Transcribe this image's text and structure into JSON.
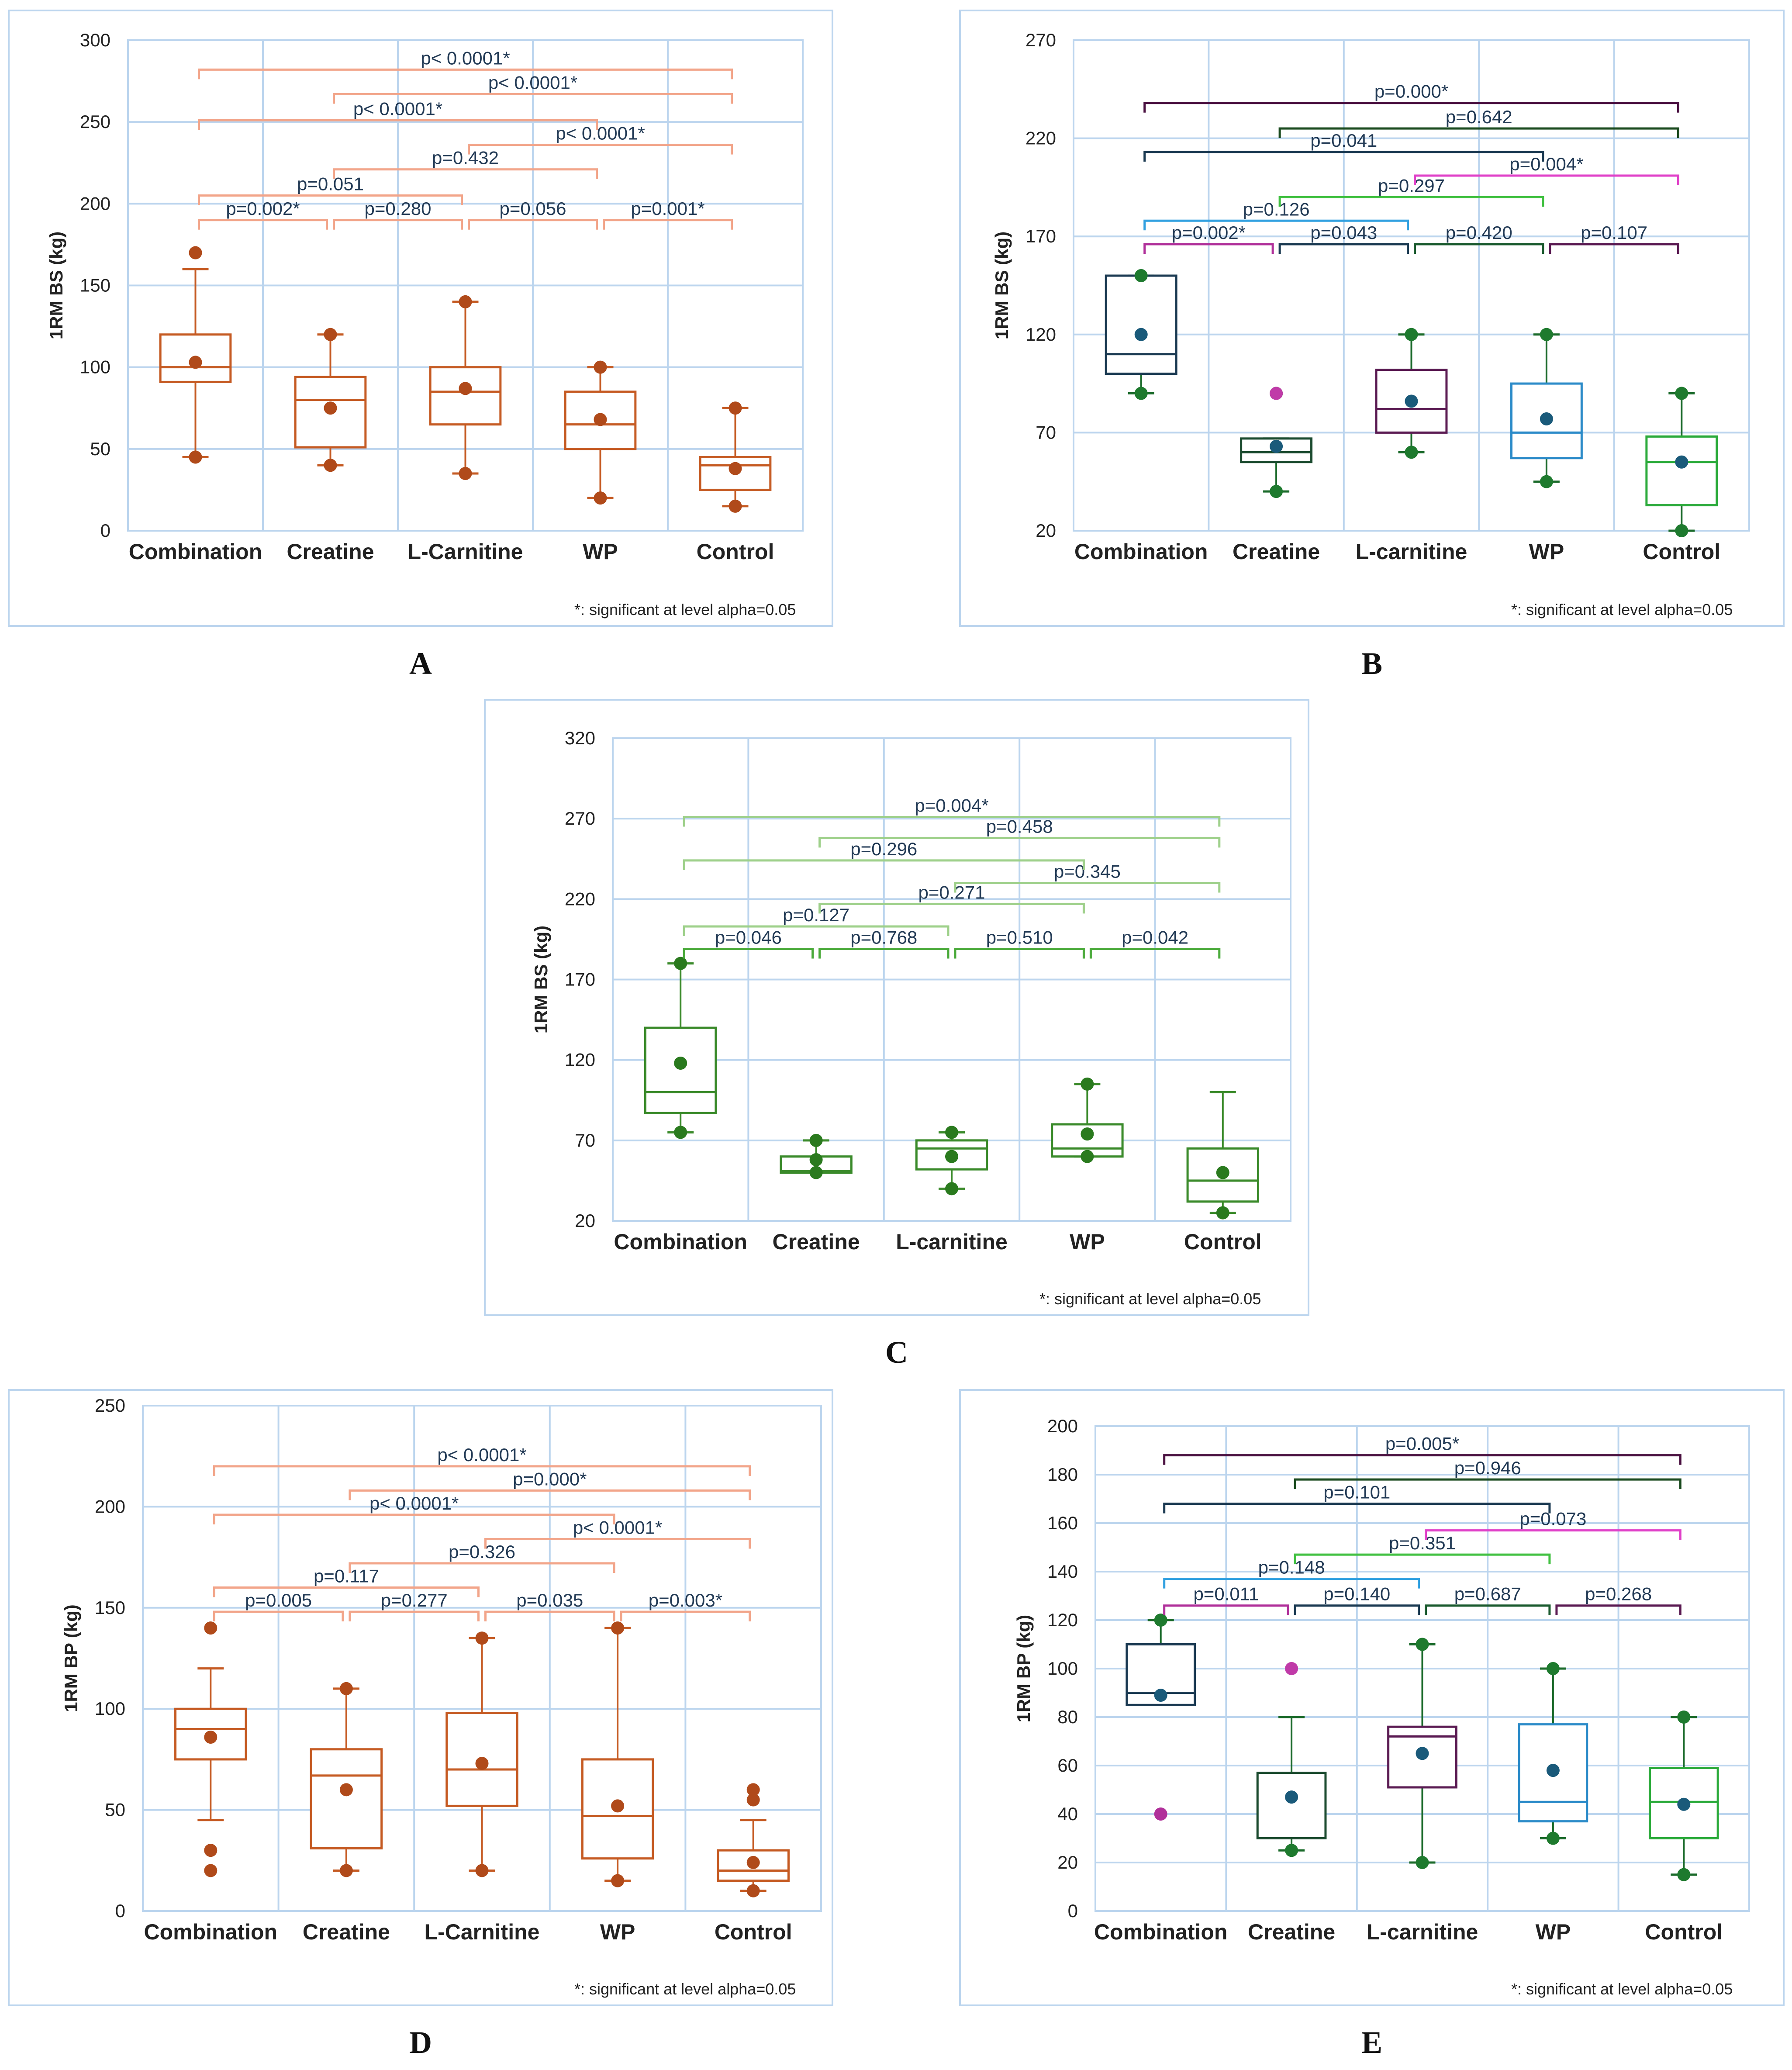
{
  "figure": {
    "footnote": "*: significant at level alpha=0.05"
  },
  "chart_data": [
    {
      "type": "box",
      "panel_label": "A",
      "title": "",
      "xlabel": "",
      "ylabel": "1RM BS (kg)",
      "ylim": [
        0,
        300
      ],
      "yticks": [
        "0",
        "50",
        "100",
        "150",
        "200",
        "250",
        "300"
      ],
      "categories": [
        "Combination",
        "Creatine",
        "L-Carnitine",
        "WP",
        "Control"
      ],
      "grid": true,
      "color": "#c55a22",
      "bracket_color": "#f2a58a",
      "outlier_color": "#b04a1a",
      "mean_color": "#b04a1a",
      "boxes": [
        {
          "min": 45,
          "q1": 91,
          "median": 100,
          "q3": 120,
          "max": 160,
          "mean": 103,
          "outliers": [
            170,
            45
          ]
        },
        {
          "min": 40,
          "q1": 51,
          "median": 80,
          "q3": 94,
          "max": 120,
          "mean": 75,
          "outliers": [
            120,
            40
          ]
        },
        {
          "min": 35,
          "q1": 65,
          "median": 85,
          "q3": 100,
          "max": 140,
          "mean": 87,
          "outliers": [
            140,
            35
          ]
        },
        {
          "min": 20,
          "q1": 50,
          "median": 65,
          "q3": 85,
          "max": 100,
          "mean": 68,
          "outliers": [
            100,
            20
          ]
        },
        {
          "min": 15,
          "q1": 25,
          "median": 40,
          "q3": 45,
          "max": 75,
          "mean": 38,
          "outliers": [
            75,
            15
          ]
        }
      ],
      "comparisons": [
        {
          "from": 0,
          "to": 1,
          "label": "p=0.002*",
          "y": 190
        },
        {
          "from": 1,
          "to": 2,
          "label": "p=0.280",
          "y": 190
        },
        {
          "from": 2,
          "to": 3,
          "label": "p=0.056",
          "y": 190
        },
        {
          "from": 3,
          "to": 4,
          "label": "p=0.001*",
          "y": 190
        },
        {
          "from": 0,
          "to": 2,
          "label": "p=0.051",
          "y": 205
        },
        {
          "from": 1,
          "to": 3,
          "label": "p=0.432",
          "y": 221
        },
        {
          "from": 2,
          "to": 4,
          "label": "p< 0.0001*",
          "y": 236
        },
        {
          "from": 0,
          "to": 3,
          "label": "p< 0.0001*",
          "y": 251
        },
        {
          "from": 1,
          "to": 4,
          "label": "p< 0.0001*",
          "y": 267
        },
        {
          "from": 0,
          "to": 4,
          "label": "p< 0.0001*",
          "y": 282
        }
      ]
    },
    {
      "type": "box",
      "panel_label": "B",
      "title": "",
      "xlabel": "",
      "ylabel": "1RM BS (kg)",
      "ylim": [
        20,
        270
      ],
      "yticks": [
        "20",
        "70",
        "120",
        "170",
        "220",
        "270"
      ],
      "categories": [
        "Combination",
        "Creatine",
        "L-carnitine",
        "WP",
        "Control"
      ],
      "grid": true,
      "box_colors": [
        "#1b3a52",
        "#1a4a2e",
        "#5a1a52",
        "#2a8ac8",
        "#2aaa3a"
      ],
      "whisker_color": "#1a6a2a",
      "outlier_color": "#1e7a2e",
      "mean_color": "#1a5a7a",
      "boxes": [
        {
          "min": 90,
          "q1": 100,
          "median": 110,
          "q3": 150,
          "max": 150,
          "mean": 120,
          "outliers": [
            150,
            90
          ]
        },
        {
          "min": 40,
          "q1": 55,
          "median": 60,
          "q3": 67,
          "max": 67,
          "mean": 63,
          "outliers": [
            90,
            40
          ]
        },
        {
          "min": 60,
          "q1": 70,
          "median": 82,
          "q3": 102,
          "max": 120,
          "mean": 86,
          "outliers": [
            120,
            60
          ]
        },
        {
          "min": 45,
          "q1": 57,
          "median": 70,
          "q3": 95,
          "max": 120,
          "mean": 77,
          "outliers": [
            120,
            45
          ]
        },
        {
          "min": 20,
          "q1": 33,
          "median": 55,
          "q3": 68,
          "max": 90,
          "mean": 55,
          "outliers": [
            90,
            20
          ]
        }
      ],
      "special_outliers": [
        {
          "box": 1,
          "value": 90,
          "color": "#c03aa8"
        }
      ],
      "comparisons": [
        {
          "from": 0,
          "to": 1,
          "label": "p=0.002*",
          "y": 166,
          "color": "#b0309a"
        },
        {
          "from": 1,
          "to": 2,
          "label": "p=0.043",
          "y": 166,
          "color": "#1b3a52"
        },
        {
          "from": 2,
          "to": 3,
          "label": "p=0.420",
          "y": 166,
          "color": "#1a5a2e"
        },
        {
          "from": 3,
          "to": 4,
          "label": "p=0.107",
          "y": 166,
          "color": "#5a1a52"
        },
        {
          "from": 0,
          "to": 2,
          "label": "p=0.126",
          "y": 178,
          "color": "#30a0e0"
        },
        {
          "from": 1,
          "to": 3,
          "label": "p=0.297",
          "y": 190,
          "color": "#40c040"
        },
        {
          "from": 2,
          "to": 4,
          "label": "p=0.004*",
          "y": 201,
          "color": "#e040c8"
        },
        {
          "from": 0,
          "to": 3,
          "label": "p=0.041",
          "y": 213,
          "color": "#1b3a52"
        },
        {
          "from": 1,
          "to": 4,
          "label": "p=0.642",
          "y": 225,
          "color": "#1a4a1e"
        },
        {
          "from": 0,
          "to": 4,
          "label": "p=0.000*",
          "y": 238,
          "color": "#4a1040"
        }
      ]
    },
    {
      "type": "box",
      "panel_label": "C",
      "title": "",
      "xlabel": "",
      "ylabel": "1RM BS (kg)",
      "ylim": [
        20,
        320
      ],
      "yticks": [
        "20",
        "70",
        "120",
        "170",
        "220",
        "270",
        "320"
      ],
      "categories": [
        "Combination",
        "Creatine",
        "L-carnitine",
        "WP",
        "Control"
      ],
      "grid": true,
      "color": "#3a8a2a",
      "bracket_color": "#9ed08a",
      "outlier_color": "#2a7a1e",
      "mean_color": "#2a7a1e",
      "boxes": [
        {
          "min": 75,
          "q1": 87,
          "median": 100,
          "q3": 140,
          "max": 180,
          "mean": 118,
          "outliers": [
            180,
            75
          ]
        },
        {
          "min": 50,
          "q1": 50,
          "median": 51,
          "q3": 60,
          "max": 70,
          "mean": 58,
          "outliers": [
            70,
            50
          ]
        },
        {
          "min": 40,
          "q1": 52,
          "median": 65,
          "q3": 70,
          "max": 75,
          "mean": 60,
          "outliers": [
            75,
            40
          ]
        },
        {
          "min": 60,
          "q1": 60,
          "median": 65,
          "q3": 80,
          "max": 105,
          "mean": 74,
          "outliers": [
            105,
            60
          ]
        },
        {
          "min": 25,
          "q1": 32,
          "median": 45,
          "q3": 65,
          "max": 100,
          "mean": 50,
          "outliers": [
            25
          ]
        }
      ],
      "comparisons": [
        {
          "from": 0,
          "to": 1,
          "label": "p=0.046",
          "y": 189,
          "color": "#4aaa3a"
        },
        {
          "from": 1,
          "to": 2,
          "label": "p=0.768",
          "y": 189,
          "color": "#4aaa3a"
        },
        {
          "from": 2,
          "to": 3,
          "label": "p=0.510",
          "y": 189,
          "color": "#4aaa3a"
        },
        {
          "from": 3,
          "to": 4,
          "label": "p=0.042",
          "y": 189,
          "color": "#4aaa3a"
        },
        {
          "from": 0,
          "to": 2,
          "label": "p=0.127",
          "y": 203
        },
        {
          "from": 1,
          "to": 3,
          "label": "p=0.271",
          "y": 217
        },
        {
          "from": 2,
          "to": 4,
          "label": "p=0.345",
          "y": 230
        },
        {
          "from": 0,
          "to": 3,
          "label": "p=0.296",
          "y": 244
        },
        {
          "from": 1,
          "to": 4,
          "label": "p=0.458",
          "y": 258
        },
        {
          "from": 0,
          "to": 4,
          "label": "p=0.004*",
          "y": 271
        }
      ]
    },
    {
      "type": "box",
      "panel_label": "D",
      "title": "",
      "xlabel": "",
      "ylabel": "1RM BP (kg)",
      "ylim": [
        0,
        250
      ],
      "yticks": [
        "0",
        "50",
        "100",
        "150",
        "200",
        "250"
      ],
      "categories": [
        "Combination",
        "Creatine",
        "L-Carnitine",
        "WP",
        "Control"
      ],
      "grid": true,
      "color": "#c55a22",
      "bracket_color": "#f2a58a",
      "outlier_color": "#b04a1a",
      "mean_color": "#b04a1a",
      "boxes": [
        {
          "min": 45,
          "q1": 75,
          "median": 90,
          "q3": 100,
          "max": 120,
          "mean": 86,
          "outliers": [
            140,
            30,
            20
          ]
        },
        {
          "min": 20,
          "q1": 31,
          "median": 67,
          "q3": 80,
          "max": 110,
          "mean": 60,
          "outliers": [
            110,
            20
          ]
        },
        {
          "min": 20,
          "q1": 52,
          "median": 70,
          "q3": 98,
          "max": 135,
          "mean": 73,
          "outliers": [
            135,
            20
          ]
        },
        {
          "min": 15,
          "q1": 26,
          "median": 47,
          "q3": 75,
          "max": 140,
          "mean": 52,
          "outliers": [
            140,
            15
          ]
        },
        {
          "min": 10,
          "q1": 15,
          "median": 20,
          "q3": 30,
          "max": 45,
          "mean": 24,
          "outliers": [
            60,
            55,
            10
          ]
        }
      ],
      "comparisons": [
        {
          "from": 0,
          "to": 1,
          "label": "p=0.005",
          "y": 148
        },
        {
          "from": 1,
          "to": 2,
          "label": "p=0.277",
          "y": 148
        },
        {
          "from": 2,
          "to": 3,
          "label": "p=0.035",
          "y": 148
        },
        {
          "from": 3,
          "to": 4,
          "label": "p=0.003*",
          "y": 148
        },
        {
          "from": 0,
          "to": 2,
          "label": "p=0.117",
          "y": 160
        },
        {
          "from": 1,
          "to": 3,
          "label": "p=0.326",
          "y": 172
        },
        {
          "from": 2,
          "to": 4,
          "label": "p< 0.0001*",
          "y": 184
        },
        {
          "from": 0,
          "to": 3,
          "label": "p< 0.0001*",
          "y": 196
        },
        {
          "from": 1,
          "to": 4,
          "label": "p=0.000*",
          "y": 208
        },
        {
          "from": 0,
          "to": 4,
          "label": "p< 0.0001*",
          "y": 220
        }
      ]
    },
    {
      "type": "box",
      "panel_label": "E",
      "title": "",
      "xlabel": "",
      "ylabel": "1RM BP (kg)",
      "ylim": [
        0,
        200
      ],
      "yticks": [
        "0",
        "20",
        "40",
        "60",
        "80",
        "100",
        "120",
        "140",
        "160",
        "180",
        "200"
      ],
      "categories": [
        "Combination",
        "Creatine",
        "L-carnitine",
        "WP",
        "Control"
      ],
      "grid": true,
      "box_colors": [
        "#1b3a52",
        "#1a4a2e",
        "#5a1a52",
        "#2a8ac8",
        "#2aaa3a"
      ],
      "whisker_color": "#1a6a2a",
      "outlier_color": "#1e7a2e",
      "mean_color": "#1a5a7a",
      "boxes": [
        {
          "min": 85,
          "q1": 85,
          "median": 90,
          "q3": 110,
          "max": 120,
          "mean": 89,
          "outliers": [
            120
          ]
        },
        {
          "min": 25,
          "q1": 30,
          "median": 30,
          "q3": 57,
          "max": 80,
          "mean": 47,
          "outliers": [
            25
          ]
        },
        {
          "min": 20,
          "q1": 51,
          "median": 72,
          "q3": 76,
          "max": 110,
          "mean": 65,
          "outliers": [
            110,
            20
          ]
        },
        {
          "min": 30,
          "q1": 37,
          "median": 45,
          "q3": 77,
          "max": 100,
          "mean": 58,
          "outliers": [
            100,
            30
          ]
        },
        {
          "min": 15,
          "q1": 30,
          "median": 45,
          "q3": 59,
          "max": 80,
          "mean": 44,
          "outliers": [
            80,
            15
          ]
        }
      ],
      "special_outliers": [
        {
          "box": 0,
          "value": 40,
          "color": "#b0309a"
        },
        {
          "box": 1,
          "value": 100,
          "color": "#c03aa8"
        }
      ],
      "comparisons": [
        {
          "from": 0,
          "to": 1,
          "label": "p=0.011",
          "y": 126,
          "color": "#b0309a"
        },
        {
          "from": 1,
          "to": 2,
          "label": "p=0.140",
          "y": 126,
          "color": "#1b3a52"
        },
        {
          "from": 2,
          "to": 3,
          "label": "p=0.687",
          "y": 126,
          "color": "#1a5a2e"
        },
        {
          "from": 3,
          "to": 4,
          "label": "p=0.268",
          "y": 126,
          "color": "#5a1a52"
        },
        {
          "from": 0,
          "to": 2,
          "label": "p=0.148",
          "y": 137,
          "color": "#30a0e0"
        },
        {
          "from": 1,
          "to": 3,
          "label": "p=0.351",
          "y": 147,
          "color": "#40c040"
        },
        {
          "from": 2,
          "to": 4,
          "label": "p=0.073",
          "y": 157,
          "color": "#e040c8"
        },
        {
          "from": 0,
          "to": 3,
          "label": "p=0.101",
          "y": 168,
          "color": "#1b3a52"
        },
        {
          "from": 1,
          "to": 4,
          "label": "p=0.946",
          "y": 178,
          "color": "#1a4a1e"
        },
        {
          "from": 0,
          "to": 4,
          "label": "p=0.005*",
          "y": 188,
          "color": "#4a1040"
        }
      ]
    }
  ]
}
